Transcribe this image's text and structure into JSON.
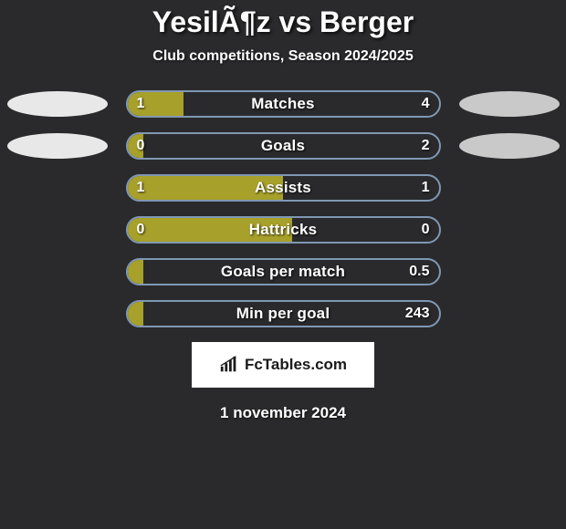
{
  "title": "YesilÃ¶z vs Berger",
  "subtitle": "Club competitions, Season 2024/2025",
  "date": "1 november 2024",
  "logo_text": "FcTables.com",
  "colors": {
    "background": "#2a2a2c",
    "bar_fill": "#a7a02a",
    "bar_border": "#7f98b3",
    "oval_left": "#e8e8e8",
    "oval_right": "#c8c9c8",
    "text": "#ffffff",
    "logo_bg": "#ffffff",
    "logo_text": "#1a1a1a"
  },
  "rows": [
    {
      "label": "Matches",
      "left_val": "1",
      "right_val": "4",
      "fill_pct": 18,
      "show_ovals": true,
      "show_left": true,
      "show_right": true
    },
    {
      "label": "Goals",
      "left_val": "0",
      "right_val": "2",
      "fill_pct": 5,
      "show_ovals": true,
      "show_left": true,
      "show_right": true
    },
    {
      "label": "Assists",
      "left_val": "1",
      "right_val": "1",
      "fill_pct": 50,
      "show_ovals": false,
      "show_left": true,
      "show_right": true
    },
    {
      "label": "Hattricks",
      "left_val": "0",
      "right_val": "0",
      "fill_pct": 53,
      "show_ovals": false,
      "show_left": true,
      "show_right": true
    },
    {
      "label": "Goals per match",
      "left_val": "",
      "right_val": "0.5",
      "fill_pct": 5,
      "show_ovals": false,
      "show_left": false,
      "show_right": true
    },
    {
      "label": "Min per goal",
      "left_val": "",
      "right_val": "243",
      "fill_pct": 5,
      "show_ovals": false,
      "show_left": false,
      "show_right": true
    }
  ]
}
